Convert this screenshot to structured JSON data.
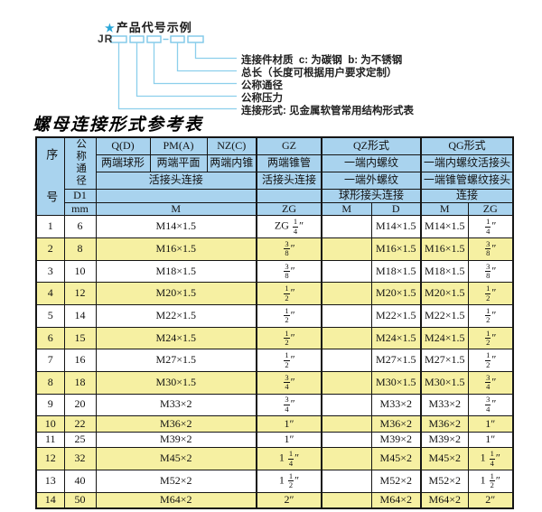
{
  "diagram": {
    "star": "★",
    "title": "产品代号示例",
    "prefix": "JR",
    "labels": [
      "连接件材质  c: 为碳钢  b: 为不锈钢",
      "总长（长度可根据用户要求定制）",
      "公称通径",
      "公称压力",
      "连接形式: 见金属软管常用结构形式表"
    ]
  },
  "table": {
    "title": "螺母连接形式参考表",
    "header": {
      "xuhao": "序号",
      "gongcheng": "公称通径",
      "d1": "D1",
      "mm": "mm",
      "q": "Q(D)",
      "pm": "PM(A)",
      "nz": "NZ(C)",
      "gz": "GZ",
      "qz": "QZ形式",
      "qg": "QG形式",
      "q2": "两端球形",
      "pm2": "两端平面",
      "nz2": "两端内锥",
      "gz2": "两端锥管",
      "qz2": "一端内螺纹",
      "qg2": "一端内螺纹活接头",
      "union3": "活接头连接",
      "gz3": "活接头连接",
      "qz3": "一端外螺纹",
      "qg3": "一端锥管螺纹接头",
      "qz4": "球形接头连接",
      "qg4": "连接",
      "m": "M",
      "zg": "ZG",
      "qzm": "M",
      "qzd": "D",
      "qgm": "M",
      "qgzg": "ZG"
    },
    "rows": [
      [
        "1",
        "6",
        "M14×1.5",
        "ZG 1/4″",
        "",
        "M14×1.5",
        "M14×1.5",
        "1/4″"
      ],
      [
        "2",
        "8",
        "M16×1.5",
        "3/8″",
        "",
        "M16×1.5",
        "M16×1.5",
        "3/8″"
      ],
      [
        "3",
        "10",
        "M18×1.5",
        "3/8″",
        "",
        "M18×1.5",
        "M18×1.5",
        "3/8″"
      ],
      [
        "4",
        "12",
        "M20×1.5",
        "1/2″",
        "",
        "M20×1.5",
        "M20×1.5",
        "1/2″"
      ],
      [
        "5",
        "14",
        "M22×1.5",
        "1/2″",
        "",
        "M22×1.5",
        "M22×1.5",
        "1/2″"
      ],
      [
        "6",
        "15",
        "M24×1.5",
        "1/2″",
        "",
        "M24×1.5",
        "M24×1.5",
        "1/2″"
      ],
      [
        "7",
        "16",
        "M27×1.5",
        "1/2″",
        "",
        "M27×1.5",
        "M27×1.5",
        "1/2″"
      ],
      [
        "8",
        "18",
        "M30×1.5",
        "3/4″",
        "",
        "M30×1.5",
        "M30×1.5",
        "3/4″"
      ],
      [
        "9",
        "20",
        "M33×2",
        "3/4″",
        "",
        "M33×2",
        "M33×2",
        "3/4″"
      ],
      [
        "10",
        "22",
        "M36×2",
        "1″",
        "",
        "M36×2",
        "M36×2",
        "1″"
      ],
      [
        "11",
        "25",
        "M39×2",
        "1″",
        "",
        "M39×2",
        "M39×2",
        "1″"
      ],
      [
        "12",
        "32",
        "M45×2",
        "1 1/4″",
        "",
        "M45×2",
        "M45×2",
        "1 1/4″"
      ],
      [
        "13",
        "40",
        "M52×2",
        "1 1/2″",
        "",
        "M52×2",
        "M52×2",
        "1 1/2″"
      ],
      [
        "14",
        "50",
        "M64×2",
        "2″",
        "",
        "M64×2",
        "M64×2",
        "2″"
      ]
    ]
  },
  "colors": {
    "header_bg": "#a9d3ee",
    "stripe_bg": "#f6f0a2",
    "border": "#151515",
    "diagram_line": "#8ccfec",
    "box_stroke": "#7ec8e8",
    "star": "#2aa6d8"
  }
}
